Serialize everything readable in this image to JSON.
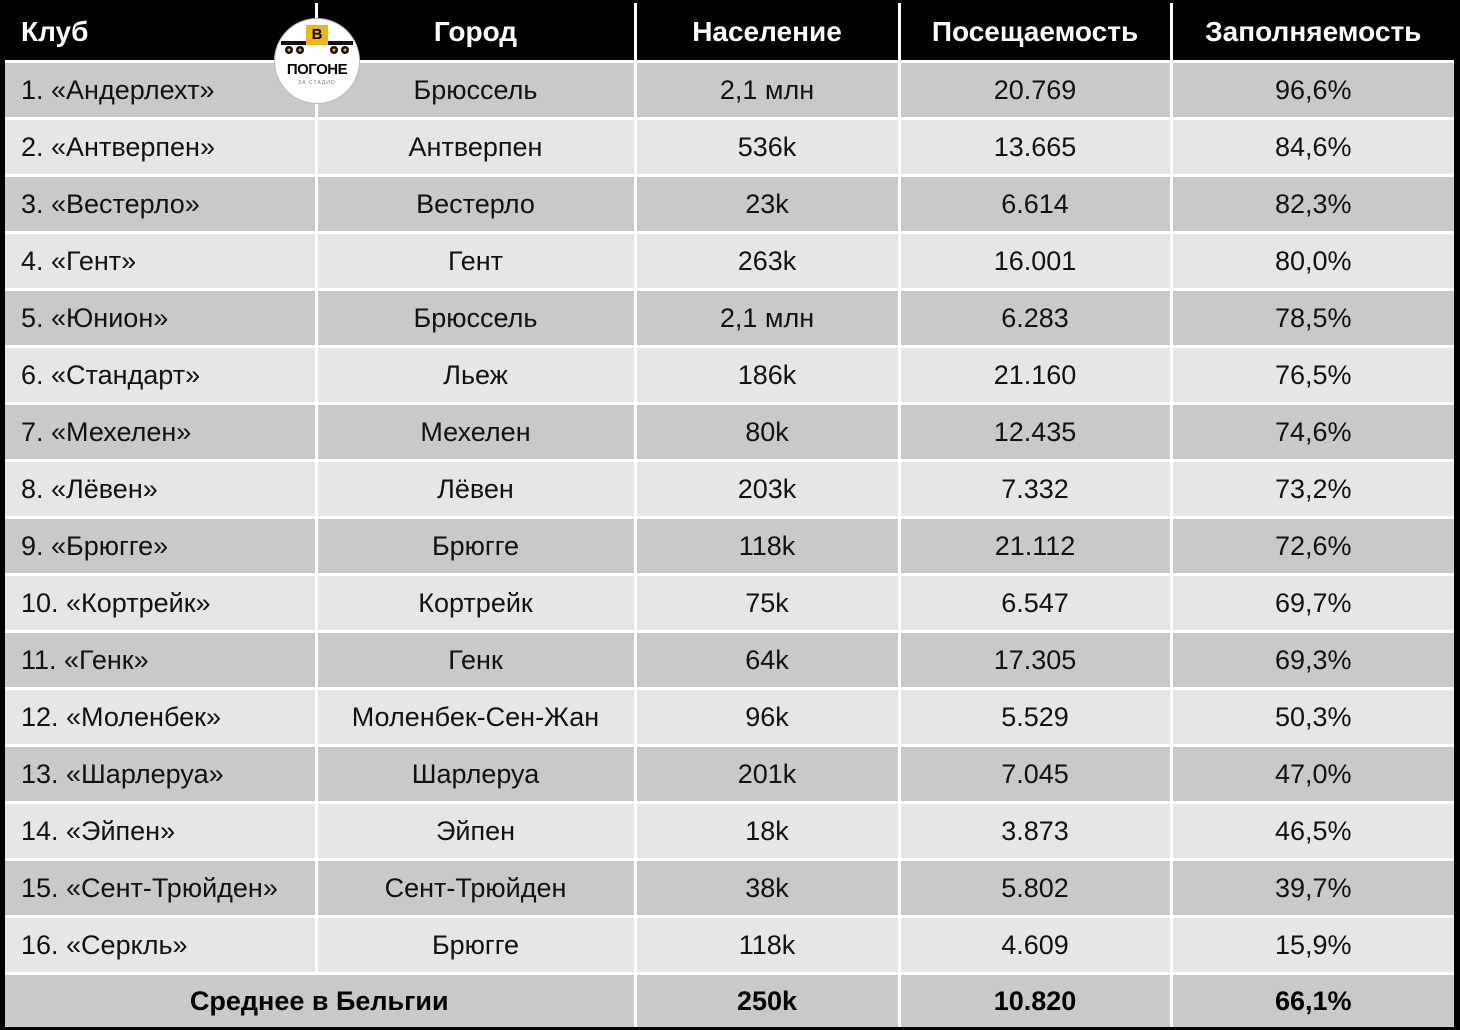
{
  "headers": {
    "club": "Клуб",
    "city": "Город",
    "population": "Население",
    "attendance": "Посещаемость",
    "occupancy": "Заполняемость"
  },
  "rows": [
    {
      "club": "1. «Андерлехт»",
      "city": "Брюссель",
      "population": "2,1 млн",
      "attendance": "20.769",
      "occupancy": "96,6%"
    },
    {
      "club": "2. «Антверпен»",
      "city": "Антверпен",
      "population": "536k",
      "attendance": "13.665",
      "occupancy": "84,6%"
    },
    {
      "club": "3. «Вестерло»",
      "city": "Вестерло",
      "population": "23k",
      "attendance": "6.614",
      "occupancy": "82,3%"
    },
    {
      "club": "4. «Гент»",
      "city": "Гент",
      "population": "263k",
      "attendance": "16.001",
      "occupancy": "80,0%"
    },
    {
      "club": "5. «Юнион»",
      "city": "Брюссель",
      "population": "2,1 млн",
      "attendance": "6.283",
      "occupancy": "78,5%"
    },
    {
      "club": "6. «Стандарт»",
      "city": "Льеж",
      "population": "186k",
      "attendance": "21.160",
      "occupancy": "76,5%"
    },
    {
      "club": "7. «Мехелен»",
      "city": "Мехелен",
      "population": "80k",
      "attendance": "12.435",
      "occupancy": "74,6%"
    },
    {
      "club": "8. «Лёвен»",
      "city": "Лёвен",
      "population": "203k",
      "attendance": "7.332",
      "occupancy": "73,2%"
    },
    {
      "club": "9. «Брюгге»",
      "city": "Брюгге",
      "population": "118k",
      "attendance": "21.112",
      "occupancy": "72,6%"
    },
    {
      "club": "10. «Кортрейк»",
      "city": "Кортрейк",
      "population": "75k",
      "attendance": "6.547",
      "occupancy": "69,7%"
    },
    {
      "club": "11. «Генк»",
      "city": "Генк",
      "population": "64k",
      "attendance": "17.305",
      "occupancy": "69,3%"
    },
    {
      "club": "12. «Моленбек»",
      "city": "Моленбек-Сен-Жан",
      "population": "96k",
      "attendance": "5.529",
      "occupancy": "50,3%"
    },
    {
      "club": "13. «Шарлеруа»",
      "city": "Шарлеруа",
      "population": "201k",
      "attendance": "7.045",
      "occupancy": "47,0%"
    },
    {
      "club": "14. «Эйпен»",
      "city": "Эйпен",
      "population": "18k",
      "attendance": "3.873",
      "occupancy": "46,5%"
    },
    {
      "club": "15. «Сент-Трюйден»",
      "city": "Сент-Трюйден",
      "population": "38k",
      "attendance": "5.802",
      "occupancy": "39,7%"
    },
    {
      "club": "16. «Серкль»",
      "city": "Брюгге",
      "population": "118k",
      "attendance": "4.609",
      "occupancy": "15,9%"
    }
  ],
  "footer": {
    "label": "Среднее в Бельгии",
    "population": "250k",
    "attendance": "10.820",
    "occupancy": "66,1%"
  },
  "logo": {
    "letter": "В",
    "word": "ПОГОНЕ",
    "sub": "ЗА СТАДИО",
    "accent": "#f2b21c"
  }
}
